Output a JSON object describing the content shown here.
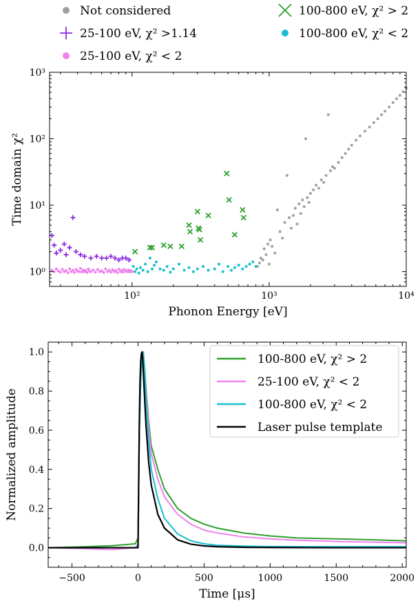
{
  "chart_data": [
    {
      "type": "scatter",
      "x_scale": "log",
      "y_scale": "log",
      "xlim": [
        25,
        10000
      ],
      "ylim": [
        0.6,
        1000
      ],
      "xlabel": "Phonon Energy [eV]",
      "ylabel": "Time domain χ²",
      "x_ticks": [
        {
          "value": 100,
          "label": "10²"
        },
        {
          "value": 1000,
          "label": "10³"
        },
        {
          "value": 10000,
          "label": "10⁴"
        }
      ],
      "y_ticks": [
        {
          "value": 1,
          "label": "10⁰"
        },
        {
          "value": 10,
          "label": "10¹"
        },
        {
          "value": 100,
          "label": "10²"
        },
        {
          "value": 1000,
          "label": "10³"
        }
      ],
      "legend_position": "above",
      "series": [
        {
          "name": "Not considered",
          "color": "#a0a0a0",
          "marker": "dot",
          "points": [
            [
              820,
              1.2
            ],
            [
              850,
              1.35
            ],
            [
              870,
              1.6
            ],
            [
              900,
              1.5
            ],
            [
              920,
              2.2
            ],
            [
              950,
              1.8
            ],
            [
              980,
              2.6
            ],
            [
              1000,
              1.3
            ],
            [
              1020,
              3.0
            ],
            [
              1050,
              2.4
            ],
            [
              1100,
              1.9
            ],
            [
              1150,
              8.5
            ],
            [
              1200,
              4.0
            ],
            [
              1250,
              3.2
            ],
            [
              1300,
              5.5
            ],
            [
              1350,
              28
            ],
            [
              1400,
              6.5
            ],
            [
              1450,
              4.5
            ],
            [
              1500,
              7.0
            ],
            [
              1550,
              9.0
            ],
            [
              1600,
              5.2
            ],
            [
              1650,
              10.5
            ],
            [
              1700,
              7.5
            ],
            [
              1750,
              12
            ],
            [
              1800,
              9.5
            ],
            [
              1850,
              100
            ],
            [
              1900,
              13
            ],
            [
              1950,
              11
            ],
            [
              2000,
              15
            ],
            [
              2100,
              17
            ],
            [
              2200,
              20
            ],
            [
              2300,
              18
            ],
            [
              2400,
              24
            ],
            [
              2500,
              22
            ],
            [
              2600,
              28
            ],
            [
              2700,
              230
            ],
            [
              2800,
              33
            ],
            [
              2900,
              38
            ],
            [
              3000,
              36
            ],
            [
              3200,
              44
            ],
            [
              3400,
              52
            ],
            [
              3600,
              60
            ],
            [
              3800,
              70
            ],
            [
              4000,
              80
            ],
            [
              4300,
              95
            ],
            [
              4600,
              110
            ],
            [
              5000,
              130
            ],
            [
              5400,
              150
            ],
            [
              5800,
              175
            ],
            [
              6200,
              200
            ],
            [
              6600,
              230
            ],
            [
              7000,
              260
            ],
            [
              7500,
              300
            ],
            [
              8000,
              350
            ],
            [
              8500,
              400
            ],
            [
              9000,
              450
            ],
            [
              9500,
              510
            ],
            [
              10000,
              580
            ]
          ]
        },
        {
          "name": "25-100 eV, χ² >1.14",
          "color": "#8a2be2",
          "marker": "plus",
          "points": [
            [
              26,
              3.5
            ],
            [
              27,
              2.5
            ],
            [
              28,
              1.9
            ],
            [
              30,
              2.1
            ],
            [
              32,
              2.6
            ],
            [
              33,
              1.8
            ],
            [
              35,
              2.3
            ],
            [
              37,
              6.5
            ],
            [
              39,
              2.0
            ],
            [
              42,
              1.8
            ],
            [
              45,
              1.7
            ],
            [
              50,
              1.6
            ],
            [
              55,
              1.7
            ],
            [
              60,
              1.6
            ],
            [
              65,
              1.6
            ],
            [
              70,
              1.7
            ],
            [
              75,
              1.6
            ],
            [
              80,
              1.5
            ],
            [
              85,
              1.6
            ],
            [
              90,
              1.6
            ],
            [
              95,
              1.5
            ]
          ]
        },
        {
          "name": "25-100 eV, χ² < 2",
          "color": "#ee82ee",
          "marker": "dot",
          "points": [
            [
              26,
              1.05
            ],
            [
              27,
              1.0
            ],
            [
              28,
              1.1
            ],
            [
              29,
              1.02
            ],
            [
              30,
              0.98
            ],
            [
              31,
              1.08
            ],
            [
              32,
              1.0
            ],
            [
              33,
              1.04
            ],
            [
              34,
              0.96
            ],
            [
              35,
              1.1
            ],
            [
              36,
              1.0
            ],
            [
              37,
              1.05
            ],
            [
              38,
              0.97
            ],
            [
              39,
              1.08
            ],
            [
              40,
              1.02
            ],
            [
              41,
              1.0
            ],
            [
              42,
              1.12
            ],
            [
              43,
              0.99
            ],
            [
              44,
              1.06
            ],
            [
              45,
              1.0
            ],
            [
              46,
              1.04
            ],
            [
              47,
              0.97
            ],
            [
              48,
              1.1
            ],
            [
              49,
              1.02
            ],
            [
              50,
              1.0
            ],
            [
              52,
              1.06
            ],
            [
              54,
              0.98
            ],
            [
              56,
              1.08
            ],
            [
              58,
              1.0
            ],
            [
              60,
              1.03
            ],
            [
              62,
              0.97
            ],
            [
              64,
              1.1
            ],
            [
              66,
              1.0
            ],
            [
              68,
              1.05
            ],
            [
              70,
              0.98
            ],
            [
              72,
              1.07
            ],
            [
              74,
              1.0
            ],
            [
              76,
              1.04
            ],
            [
              78,
              0.96
            ],
            [
              80,
              1.09
            ],
            [
              82,
              1.0
            ],
            [
              84,
              1.05
            ],
            [
              86,
              0.98
            ],
            [
              88,
              1.08
            ],
            [
              90,
              1.02
            ],
            [
              92,
              1.0
            ],
            [
              94,
              1.06
            ],
            [
              96,
              0.99
            ],
            [
              98,
              1.04
            ],
            [
              100,
              1.0
            ]
          ]
        },
        {
          "name": "100-800 eV, χ² > 2",
          "color": "#2ca02c",
          "marker": "x",
          "points": [
            [
              105,
              2.0
            ],
            [
              135,
              2.3
            ],
            [
              140,
              2.3
            ],
            [
              170,
              2.5
            ],
            [
              190,
              2.4
            ],
            [
              230,
              2.4
            ],
            [
              260,
              5.0
            ],
            [
              265,
              4.0
            ],
            [
              300,
              8.0
            ],
            [
              305,
              4.5
            ],
            [
              310,
              4.3
            ],
            [
              315,
              3.0
            ],
            [
              360,
              7.0
            ],
            [
              490,
              30
            ],
            [
              510,
              12
            ],
            [
              560,
              3.6
            ],
            [
              640,
              8.5
            ],
            [
              650,
              6.5
            ]
          ]
        },
        {
          "name": "100-800 eV, χ² < 2",
          "color": "#17becf",
          "marker": "dot",
          "points": [
            [
              102,
              1.2
            ],
            [
              105,
              1.0
            ],
            [
              108,
              1.1
            ],
            [
              112,
              0.95
            ],
            [
              115,
              1.15
            ],
            [
              120,
              1.05
            ],
            [
              125,
              1.3
            ],
            [
              130,
              1.0
            ],
            [
              135,
              1.6
            ],
            [
              140,
              1.1
            ],
            [
              145,
              1.25
            ],
            [
              150,
              1.4
            ],
            [
              160,
              1.1
            ],
            [
              170,
              1.05
            ],
            [
              180,
              1.2
            ],
            [
              190,
              0.98
            ],
            [
              200,
              1.1
            ],
            [
              220,
              1.3
            ],
            [
              240,
              1.05
            ],
            [
              260,
              1.15
            ],
            [
              280,
              1.0
            ],
            [
              300,
              1.1
            ],
            [
              330,
              1.2
            ],
            [
              360,
              1.05
            ],
            [
              400,
              1.1
            ],
            [
              430,
              1.3
            ],
            [
              460,
              1.0
            ],
            [
              500,
              1.2
            ],
            [
              530,
              1.05
            ],
            [
              560,
              1.15
            ],
            [
              600,
              1.25
            ],
            [
              640,
              1.1
            ],
            [
              680,
              1.2
            ],
            [
              720,
              1.3
            ],
            [
              760,
              1.4
            ],
            [
              800,
              1.2
            ]
          ]
        }
      ]
    },
    {
      "type": "line",
      "xlim": [
        -680,
        2030
      ],
      "ylim": [
        -0.1,
        1.05
      ],
      "xlabel": "Time [μs]",
      "ylabel": "Normalized amplitude",
      "x_ticks": [
        -500,
        0,
        500,
        1000,
        1500,
        2000
      ],
      "y_ticks": [
        0.0,
        0.2,
        0.4,
        0.6,
        0.8,
        1.0
      ],
      "legend_position": "upper right",
      "series": [
        {
          "name": "100-800 eV, χ² > 2",
          "color": "#2ca02c",
          "x": [
            -680,
            -400,
            -200,
            -20,
            0,
            5,
            10,
            20,
            30,
            40,
            50,
            60,
            80,
            100,
            150,
            200,
            300,
            400,
            500,
            600,
            800,
            1000,
            1200,
            1500,
            1800,
            2030
          ],
          "y": [
            0.0,
            0.005,
            0.01,
            0.02,
            0.05,
            0.3,
            0.6,
            0.85,
            0.97,
            0.99,
            0.92,
            0.82,
            0.65,
            0.52,
            0.4,
            0.3,
            0.2,
            0.15,
            0.12,
            0.1,
            0.075,
            0.06,
            0.05,
            0.045,
            0.04,
            0.035
          ]
        },
        {
          "name": "25-100 eV, χ² < 2",
          "color": "#ee82ee",
          "x": [
            -680,
            -400,
            -200,
            -20,
            0,
            5,
            10,
            20,
            30,
            40,
            50,
            60,
            80,
            100,
            150,
            200,
            300,
            400,
            500,
            600,
            800,
            1000,
            1200,
            1500,
            1800,
            2030
          ],
          "y": [
            0.0,
            -0.005,
            -0.01,
            0.0,
            0.02,
            0.3,
            0.6,
            0.85,
            0.97,
            1.0,
            0.9,
            0.8,
            0.62,
            0.48,
            0.35,
            0.26,
            0.17,
            0.12,
            0.09,
            0.075,
            0.055,
            0.045,
            0.038,
            0.032,
            0.028,
            0.025
          ]
        },
        {
          "name": "100-800 eV, χ² < 2",
          "color": "#17becf",
          "x": [
            -680,
            -400,
            -200,
            -20,
            0,
            5,
            10,
            20,
            30,
            40,
            50,
            60,
            80,
            100,
            150,
            200,
            300,
            400,
            500,
            600,
            800,
            1000,
            1200,
            1500,
            1800,
            2030
          ],
          "y": [
            0.0,
            0.0,
            0.0,
            0.0,
            0.01,
            0.3,
            0.6,
            0.85,
            0.97,
            1.0,
            0.88,
            0.76,
            0.55,
            0.4,
            0.25,
            0.15,
            0.07,
            0.035,
            0.02,
            0.012,
            0.008,
            0.006,
            0.005,
            0.005,
            0.005,
            0.005
          ]
        },
        {
          "name": "Laser pulse template",
          "color": "#000000",
          "x": [
            -680,
            -20,
            0,
            5,
            10,
            15,
            20,
            25,
            30,
            35,
            40,
            50,
            60,
            80,
            100,
            150,
            200,
            300,
            400,
            500,
            600,
            800,
            1000,
            1500,
            2030
          ],
          "y": [
            0.0,
            0.0,
            0.0,
            0.35,
            0.65,
            0.85,
            0.95,
            0.99,
            1.0,
            0.97,
            0.9,
            0.76,
            0.63,
            0.44,
            0.32,
            0.17,
            0.1,
            0.04,
            0.018,
            0.009,
            0.005,
            0.002,
            0.001,
            0.0,
            0.0
          ]
        }
      ]
    }
  ]
}
